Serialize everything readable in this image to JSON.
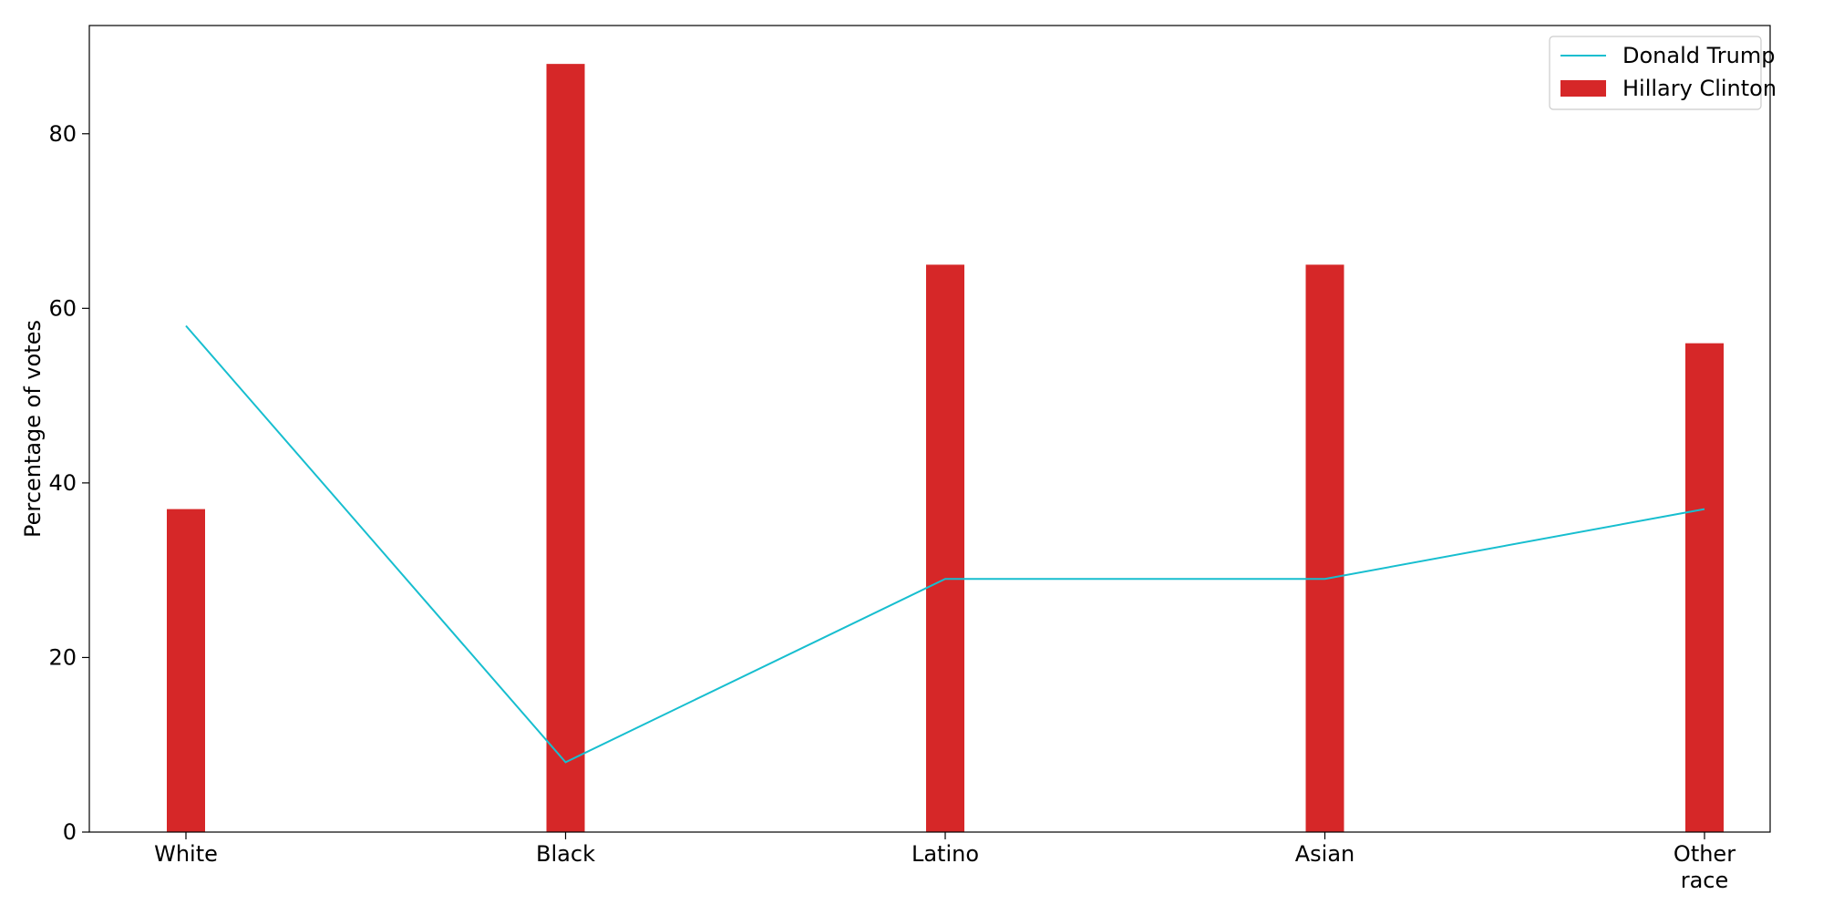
{
  "chart_data": {
    "type": "bar",
    "categories": [
      "White",
      "Black",
      "Latino",
      "Asian",
      "Other race"
    ],
    "category_label_lines": [
      [
        "White"
      ],
      [
        "Black"
      ],
      [
        "Latino"
      ],
      [
        "Asian"
      ],
      [
        "Other",
        "race"
      ]
    ],
    "series": [
      {
        "name": "Hillary Clinton",
        "type": "bar",
        "color": "#d62728",
        "values": [
          37,
          88,
          65,
          65,
          56
        ]
      },
      {
        "name": "Donald Trump",
        "type": "line",
        "color": "#17becf",
        "values": [
          58,
          8,
          29,
          29,
          37
        ]
      }
    ],
    "ylabel": "Percentage of votes",
    "xlabel": "",
    "title": "",
    "ylim": [
      0,
      92.4
    ],
    "yticks": [
      0,
      20,
      40,
      60,
      80
    ],
    "grid": false,
    "legend_position": "top-right",
    "legend_order": [
      "Donald Trump",
      "Hillary Clinton"
    ]
  }
}
